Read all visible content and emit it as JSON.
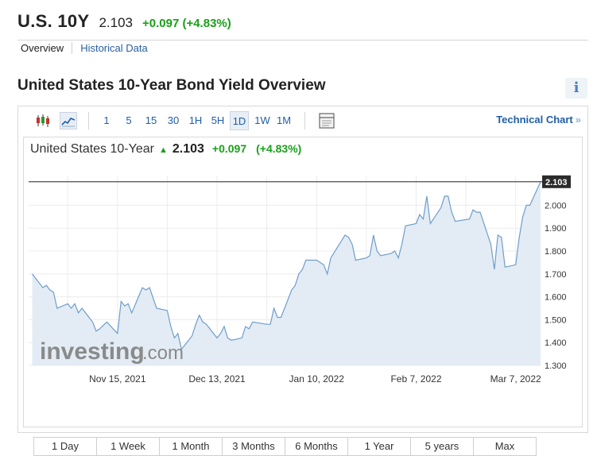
{
  "header": {
    "symbol": "U.S. 10Y",
    "price": "2.103",
    "change": "+0.097 (+4.83%)"
  },
  "subnav": {
    "tabs": [
      "Overview",
      "Historical Data"
    ]
  },
  "section_title": "United States 10-Year Bond Yield Overview",
  "info_label": "i",
  "toolbar": {
    "intervals": [
      "1",
      "5",
      "15",
      "30",
      "1H",
      "5H",
      "1D",
      "1W",
      "1M"
    ],
    "selected_interval": "1D",
    "technical_chart_label": "Technical Chart",
    "technical_chart_arrow": "»",
    "icons": [
      "candlestick-icon",
      "line-chart-icon",
      "panel-icon"
    ]
  },
  "chart_header": {
    "name": "United States 10-Year",
    "up_arrow": "▲",
    "price": "2.103",
    "change": "+0.097",
    "percent": "(+4.83%)"
  },
  "watermark": {
    "brand": "investing",
    "suffix": ".com"
  },
  "range_buttons": [
    "1 Day",
    "1 Week",
    "1 Month",
    "3 Months",
    "6 Months",
    "1 Year",
    "5 years",
    "Max"
  ],
  "colors": {
    "accent": "#1f5ea8",
    "positive": "#19a019",
    "line": "#6f9dcc",
    "fill": "#e3ecf4"
  },
  "chart_data": {
    "type": "area",
    "title": "",
    "xlabel": "",
    "ylabel": "",
    "x_tick_labels": [
      "Nov 15, 2021",
      "Dec 13, 2021",
      "Jan 10, 2022",
      "Feb 7, 2022",
      "Mar 7, 2022"
    ],
    "x_tick_dates": [
      "2021-11-15",
      "2021-12-13",
      "2022-01-10",
      "2022-02-07",
      "2022-03-07"
    ],
    "y_ticks": [
      1.3,
      1.4,
      1.5,
      1.6,
      1.7,
      1.8,
      1.9,
      2.0
    ],
    "y_tick_labels": [
      "1.300",
      "1.400",
      "1.500",
      "1.600",
      "1.700",
      "1.800",
      "1.900",
      "2.000"
    ],
    "ylim": [
      1.3,
      2.13
    ],
    "last_value": 2.103,
    "last_value_label": "2.103",
    "grid": true,
    "series": [
      {
        "points": [
          [
            "2021-10-22",
            1.7
          ],
          [
            "2021-10-25",
            1.64
          ],
          [
            "2021-10-26",
            1.65
          ],
          [
            "2021-10-27",
            1.63
          ],
          [
            "2021-10-28",
            1.62
          ],
          [
            "2021-10-29",
            1.55
          ],
          [
            "2021-11-01",
            1.57
          ],
          [
            "2021-11-02",
            1.55
          ],
          [
            "2021-11-03",
            1.57
          ],
          [
            "2021-11-04",
            1.53
          ],
          [
            "2021-11-05",
            1.55
          ],
          [
            "2021-11-08",
            1.49
          ],
          [
            "2021-11-09",
            1.45
          ],
          [
            "2021-11-10",
            1.46
          ],
          [
            "2021-11-12",
            1.49
          ],
          [
            "2021-11-15",
            1.44
          ],
          [
            "2021-11-16",
            1.58
          ],
          [
            "2021-11-17",
            1.56
          ],
          [
            "2021-11-18",
            1.57
          ],
          [
            "2021-11-19",
            1.53
          ],
          [
            "2021-11-22",
            1.64
          ],
          [
            "2021-11-23",
            1.63
          ],
          [
            "2021-11-24",
            1.64
          ],
          [
            "2021-11-26",
            1.55
          ],
          [
            "2021-11-29",
            1.54
          ],
          [
            "2021-11-30",
            1.47
          ],
          [
            "2021-12-01",
            1.42
          ],
          [
            "2021-12-02",
            1.44
          ],
          [
            "2021-12-03",
            1.37
          ],
          [
            "2021-12-06",
            1.43
          ],
          [
            "2021-12-07",
            1.48
          ],
          [
            "2021-12-08",
            1.52
          ],
          [
            "2021-12-09",
            1.49
          ],
          [
            "2021-12-10",
            1.48
          ],
          [
            "2021-12-13",
            1.42
          ],
          [
            "2021-12-14",
            1.44
          ],
          [
            "2021-12-15",
            1.47
          ],
          [
            "2021-12-16",
            1.42
          ],
          [
            "2021-12-17",
            1.41
          ],
          [
            "2021-12-20",
            1.42
          ],
          [
            "2021-12-21",
            1.47
          ],
          [
            "2021-12-22",
            1.46
          ],
          [
            "2021-12-23",
            1.49
          ],
          [
            "2021-12-27",
            1.48
          ],
          [
            "2021-12-28",
            1.48
          ],
          [
            "2021-12-29",
            1.55
          ],
          [
            "2021-12-30",
            1.51
          ],
          [
            "2021-12-31",
            1.51
          ],
          [
            "2022-01-03",
            1.63
          ],
          [
            "2022-01-04",
            1.65
          ],
          [
            "2022-01-05",
            1.7
          ],
          [
            "2022-01-06",
            1.72
          ],
          [
            "2022-01-07",
            1.76
          ],
          [
            "2022-01-10",
            1.76
          ],
          [
            "2022-01-11",
            1.75
          ],
          [
            "2022-01-12",
            1.74
          ],
          [
            "2022-01-13",
            1.7
          ],
          [
            "2022-01-14",
            1.77
          ],
          [
            "2022-01-18",
            1.87
          ],
          [
            "2022-01-19",
            1.86
          ],
          [
            "2022-01-20",
            1.83
          ],
          [
            "2022-01-21",
            1.76
          ],
          [
            "2022-01-24",
            1.77
          ],
          [
            "2022-01-25",
            1.78
          ],
          [
            "2022-01-26",
            1.87
          ],
          [
            "2022-01-27",
            1.8
          ],
          [
            "2022-01-28",
            1.78
          ],
          [
            "2022-01-31",
            1.79
          ],
          [
            "2022-02-01",
            1.8
          ],
          [
            "2022-02-02",
            1.77
          ],
          [
            "2022-02-03",
            1.83
          ],
          [
            "2022-02-04",
            1.91
          ],
          [
            "2022-02-07",
            1.92
          ],
          [
            "2022-02-08",
            1.96
          ],
          [
            "2022-02-09",
            1.94
          ],
          [
            "2022-02-10",
            2.04
          ],
          [
            "2022-02-11",
            1.92
          ],
          [
            "2022-02-14",
            1.99
          ],
          [
            "2022-02-15",
            2.04
          ],
          [
            "2022-02-16",
            2.04
          ],
          [
            "2022-02-17",
            1.97
          ],
          [
            "2022-02-18",
            1.93
          ],
          [
            "2022-02-22",
            1.94
          ],
          [
            "2022-02-23",
            1.98
          ],
          [
            "2022-02-24",
            1.97
          ],
          [
            "2022-02-25",
            1.97
          ],
          [
            "2022-02-28",
            1.83
          ],
          [
            "2022-03-01",
            1.72
          ],
          [
            "2022-03-02",
            1.87
          ],
          [
            "2022-03-03",
            1.86
          ],
          [
            "2022-03-04",
            1.73
          ],
          [
            "2022-03-07",
            1.74
          ],
          [
            "2022-03-08",
            1.86
          ],
          [
            "2022-03-09",
            1.95
          ],
          [
            "2022-03-10",
            2.0
          ],
          [
            "2022-03-11",
            2.0
          ],
          [
            "2022-03-14",
            2.103
          ]
        ]
      }
    ]
  }
}
